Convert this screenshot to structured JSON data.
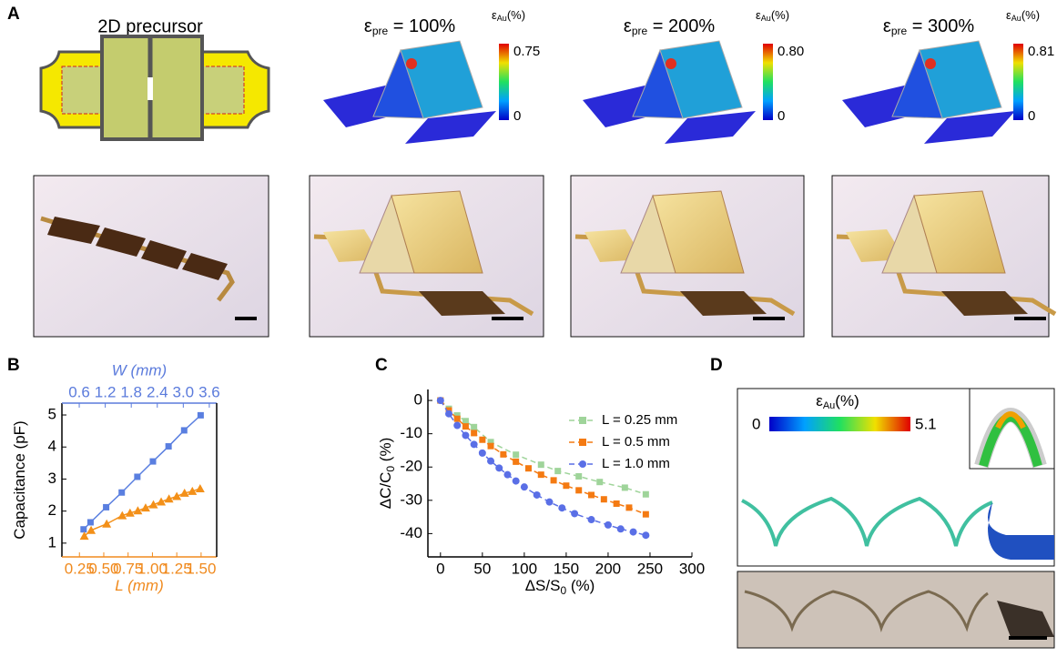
{
  "panel_a": {
    "label": "A",
    "precursor_title": "2D precursor",
    "sims": [
      {
        "symbol": "ε",
        "sub": "pre",
        "rest": " = 100%",
        "cbar_symbol": "ε",
        "cbar_sub": "Au",
        "cbar_unit": "(%)",
        "cbar_max": "0.75",
        "cbar_min": "0"
      },
      {
        "symbol": "ε",
        "sub": "pre",
        "rest": " = 200%",
        "cbar_symbol": "ε",
        "cbar_sub": "Au",
        "cbar_unit": "(%)",
        "cbar_max": "0.80",
        "cbar_min": "0"
      },
      {
        "symbol": "ε",
        "sub": "pre",
        "rest": " = 300%",
        "cbar_symbol": "ε",
        "cbar_sub": "Au",
        "cbar_unit": "(%)",
        "cbar_max": "0.81",
        "cbar_min": "0"
      }
    ]
  },
  "panel_d": {
    "label": "D",
    "cbar_symbol": "ε",
    "cbar_sub": "Au",
    "cbar_unit": "(%)",
    "cbar_min": "0",
    "cbar_max": "5.1"
  },
  "chart_data": [
    {
      "type": "line",
      "label": "B",
      "ylabel": "Capacitance (pF)",
      "xlabel": "L (mm)",
      "x2label": "W (mm)",
      "xcolor": "#f08a1e",
      "x2color": "#5b7bdc",
      "xlim": [
        0.07,
        1.66
      ],
      "xticks": [
        0.25,
        {
          "value": 0.5,
          "label": "0.50"
        },
        0.75,
        {
          "value": 1,
          "label": "1.00"
        },
        1.25,
        {
          "value": 1.5,
          "label": "1.50"
        }
      ],
      "x2lim": [
        0.2,
        3.77
      ],
      "x2ticks": [
        0.6,
        1.2,
        1.8,
        2.4,
        {
          "value": 3,
          "label": "3.0"
        },
        3.6
      ],
      "ylim": [
        0.57,
        5.37
      ],
      "yticks": [
        1,
        2,
        3,
        4,
        5
      ],
      "dashed": false,
      "series": [
        {
          "axis": "x2",
          "color": "#5a7fe0",
          "marker": "square",
          "x": [
            0.7,
            0.86,
            1.22,
            1.58,
            1.94,
            2.3,
            2.66,
            3.02,
            3.4
          ],
          "values": [
            1.43,
            1.65,
            2.12,
            2.58,
            3.07,
            3.55,
            4.02,
            4.52,
            4.99
          ]
        },
        {
          "color": "#f39019",
          "marker": "triangle",
          "x": [
            0.3,
            0.37,
            0.53,
            0.69,
            0.77,
            0.85,
            0.93,
            1.01,
            1.09,
            1.17,
            1.25,
            1.33,
            1.41,
            1.49
          ],
          "values": [
            1.22,
            1.4,
            1.6,
            1.86,
            1.94,
            2.01,
            2.1,
            2.2,
            2.29,
            2.38,
            2.46,
            2.56,
            2.62,
            2.7
          ]
        }
      ]
    },
    {
      "type": "line",
      "label": "C",
      "ylabel": "ΔC/C",
      "ylabel_sub": "0",
      "ylabel_unit": " (%)",
      "xlabel": "ΔS/S",
      "xlabel_sub": "0",
      "xlabel_unit": " (%)",
      "xlim": [
        -15,
        300
      ],
      "xticks": [
        0,
        50,
        100,
        150,
        200,
        250,
        300
      ],
      "ylim": [
        -47,
        3.3
      ],
      "yticks": [
        0,
        -10,
        -20,
        -30,
        -40
      ],
      "dashed": true,
      "series": [
        {
          "name": "L = 0.25 mm",
          "color": "#9fd49a",
          "marker": "square",
          "x": [
            0,
            10,
            20,
            30,
            40,
            60,
            90,
            120,
            140,
            165,
            190,
            220,
            245
          ],
          "values": [
            0,
            -2.5,
            -4.5,
            -6.2,
            -8,
            -12.5,
            -16.3,
            -19.3,
            -21.2,
            -22.8,
            -24.5,
            -26.2,
            -28.2
          ]
        },
        {
          "name": "L = 0.5 mm",
          "color": "#f47a12",
          "marker": "square",
          "x": [
            0,
            10,
            20,
            30,
            40,
            50,
            60,
            75,
            90,
            105,
            120,
            135,
            150,
            165,
            180,
            195,
            210,
            225,
            245
          ],
          "values": [
            0,
            -3,
            -5.5,
            -7.8,
            -9.8,
            -11.8,
            -13.7,
            -16.2,
            -18.4,
            -20.4,
            -22.3,
            -24,
            -25.6,
            -27,
            -28.4,
            -29.7,
            -31,
            -32.2,
            -34.2
          ]
        },
        {
          "name": "L = 1.0 mm",
          "color": "#5a6fe6",
          "marker": "circle",
          "x": [
            0,
            10,
            20,
            30,
            40,
            50,
            60,
            70,
            80,
            90,
            100,
            115,
            130,
            145,
            160,
            180,
            200,
            215,
            230,
            245
          ],
          "values": [
            0,
            -4,
            -7.5,
            -10.5,
            -13.2,
            -15.8,
            -18.2,
            -20.3,
            -22.3,
            -24.2,
            -26,
            -28.4,
            -30.5,
            -32.3,
            -34,
            -35.8,
            -37.4,
            -38.6,
            -39.5,
            -40.5
          ]
        }
      ]
    }
  ]
}
